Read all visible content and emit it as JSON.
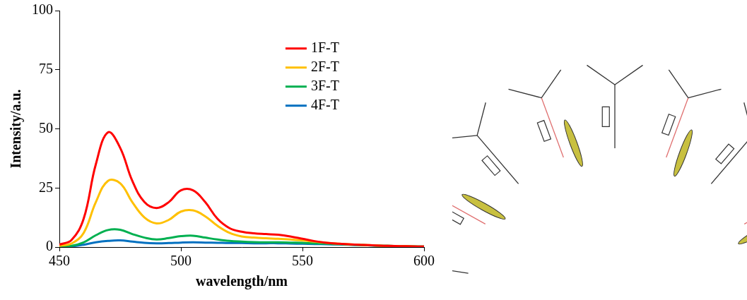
{
  "chart_data": {
    "type": "line",
    "x_label": "wavelength/nm",
    "y_label": "Intensity/a.u.",
    "x": [
      450,
      455,
      460,
      465,
      470,
      475,
      480,
      485,
      490,
      495,
      500,
      505,
      510,
      515,
      520,
      525,
      530,
      535,
      540,
      545,
      550,
      555,
      560,
      565,
      570,
      575,
      580,
      585,
      590,
      595,
      600
    ],
    "series": [
      {
        "name": "1F-T",
        "color": "#ff0000",
        "values": [
          1,
          3,
          12,
          35,
          48.5,
          42,
          28,
          19,
          16.5,
          19,
          24,
          24,
          19,
          12,
          8,
          6.5,
          5.8,
          5.5,
          5.2,
          4.5,
          3.5,
          2.5,
          1.8,
          1.4,
          1.1,
          0.9,
          0.7,
          0.5,
          0.4,
          0.3,
          0.2
        ]
      },
      {
        "name": "2F-T",
        "color": "#ffc000",
        "values": [
          0.5,
          1.5,
          6,
          19,
          28,
          27,
          19,
          12.5,
          10,
          11.5,
          15,
          15.5,
          13,
          9,
          6,
          4.5,
          4,
          3.7,
          3.5,
          3.2,
          2.8,
          2.3,
          1.8,
          1.4,
          1.1,
          0.9,
          0.7,
          0.5,
          0.4,
          0.3,
          0.2
        ]
      },
      {
        "name": "3F-T",
        "color": "#00b050",
        "values": [
          0.2,
          0.5,
          2,
          5,
          7.2,
          7.3,
          5.5,
          4,
          3.2,
          3.8,
          4.6,
          4.8,
          4,
          3.2,
          2.6,
          2.3,
          2.1,
          2,
          2,
          1.9,
          1.8,
          1.6,
          1.4,
          1.2,
          1,
          0.8,
          0.6,
          0.5,
          0.4,
          0.3,
          0.2
        ]
      },
      {
        "name": "4F-T",
        "color": "#0070c0",
        "values": [
          0.1,
          0.3,
          1,
          2,
          2.6,
          2.8,
          2.3,
          1.8,
          1.6,
          1.7,
          1.9,
          2,
          1.9,
          1.8,
          1.7,
          1.7,
          1.6,
          1.6,
          1.6,
          1.5,
          1.4,
          1.3,
          1.2,
          1.1,
          1,
          0.8,
          0.6,
          0.5,
          0.4,
          0.3,
          0.2
        ]
      }
    ],
    "xlim": [
      450,
      600
    ],
    "xticks": [
      450,
      500,
      550,
      600
    ],
    "ylim": [
      0,
      100
    ],
    "yticks": [
      0,
      25,
      50,
      75,
      100
    ],
    "grid": false,
    "legend": "upper right"
  }
}
